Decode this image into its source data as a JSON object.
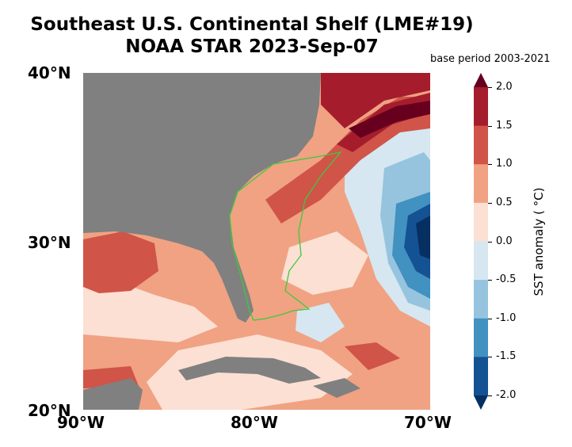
{
  "title": {
    "line1": "Southeast U.S. Continental Shelf (LME#19)",
    "line2": "NOAA STAR 2023-Sep-07"
  },
  "base_period": "base period 2003-2021",
  "axes": {
    "lat_labels": [
      "40°N",
      "30°N",
      "20°N"
    ],
    "lon_labels": [
      "90°W",
      "80°W",
      "70°W"
    ]
  },
  "colorbar": {
    "label": "SST anomaly ( °C)",
    "ticks": [
      "2.0",
      "1.5",
      "1.0",
      "0.5",
      "0.0",
      "-0.5",
      "-1.0",
      "-1.5",
      "-2.0"
    ],
    "colors": [
      "#67001f",
      "#a51d2c",
      "#d05448",
      "#f0a283",
      "#fbe0d3",
      "#d6e7f1",
      "#96c4de",
      "#4191c1",
      "#145293",
      "#053061"
    ]
  },
  "map_colors": {
    "land": "#808080",
    "lme_boundary": "#3ec93e"
  }
}
